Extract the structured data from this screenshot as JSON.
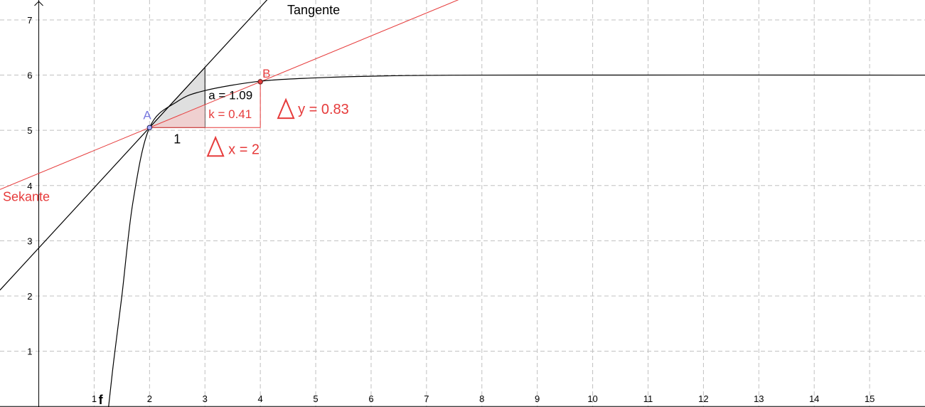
{
  "chart_data": {
    "type": "line",
    "xlim": [
      -0.7,
      16
    ],
    "ylim": [
      -0.01,
      7.36
    ],
    "grid": true,
    "x_ticks": [
      "1",
      "2",
      "3",
      "4",
      "5",
      "6",
      "7",
      "8",
      "9",
      "10",
      "11",
      "12",
      "13",
      "14",
      "15"
    ],
    "y_ticks": [
      "1",
      "2",
      "3",
      "4",
      "5",
      "6",
      "7"
    ],
    "curve": {
      "name": "f",
      "asymptote_y": 6,
      "points": [
        [
          1.25,
          -0.1
        ],
        [
          1.35,
          0.8
        ],
        [
          1.5,
          2.0
        ],
        [
          1.7,
          3.7
        ],
        [
          2.0,
          5.05
        ],
        [
          2.5,
          5.52
        ],
        [
          3.0,
          5.72
        ],
        [
          4.0,
          5.89
        ],
        [
          5.0,
          5.95
        ],
        [
          6.0,
          5.98
        ],
        [
          8.0,
          6.0
        ],
        [
          16.0,
          6.0
        ]
      ]
    },
    "point_A": {
      "label": "A",
      "x": 2,
      "y": 5.05
    },
    "point_B": {
      "label": "B",
      "x": 4,
      "y": 5.88
    },
    "tangent": {
      "label": "Tangente",
      "slope": 1.09
    },
    "secant": {
      "label": "Sekante",
      "slope": 0.415
    },
    "tangent_triangle": {
      "run_label": "1",
      "slope_label": "a = 1.09"
    },
    "secant_triangle": {
      "slope_label": "k = 0.41",
      "dx_label": "x = 2",
      "dy_label": "y = 0.83"
    },
    "colors": {
      "black": "#000000",
      "red": "#e63b3b",
      "point_a": "#7a7ae0",
      "fill_gray": "#d9d9d9",
      "fill_red": "#f2cccc",
      "grid": "#c0c0c0"
    }
  }
}
